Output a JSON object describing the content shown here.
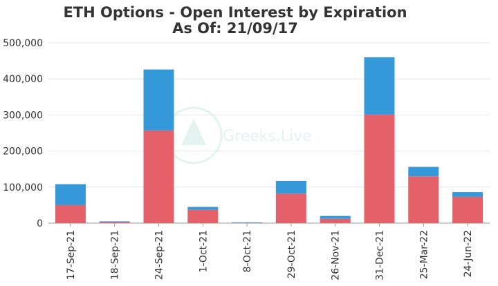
{
  "chart_data": {
    "type": "bar",
    "stacked": true,
    "title": "ETH Options - Open Interest by Expiration",
    "subtitle": "As Of: 21/09/17",
    "xlabel": "",
    "ylabel": "",
    "categories": [
      "17-Sep-21",
      "18-Sep-21",
      "24-Sep-21",
      "1-Oct-21",
      "8-Oct-21",
      "29-Oct-21",
      "26-Nov-21",
      "31-Dec-21",
      "25-Mar-22",
      "24-Jun-22"
    ],
    "series": [
      {
        "color": "#e46169",
        "values": [
          50000,
          3000,
          257000,
          37000,
          500,
          82000,
          12000,
          301000,
          130000,
          73000
        ]
      },
      {
        "color": "#3598d9",
        "values": [
          58000,
          2000,
          169000,
          8000,
          1500,
          35000,
          8000,
          159000,
          26000,
          13000
        ]
      }
    ],
    "ylim": [
      0,
      500000
    ],
    "yticks": [
      "0",
      "100,000",
      "200,000",
      "300,000",
      "400,000",
      "500,000"
    ],
    "grid": true,
    "watermark": "Greeks.Live"
  }
}
